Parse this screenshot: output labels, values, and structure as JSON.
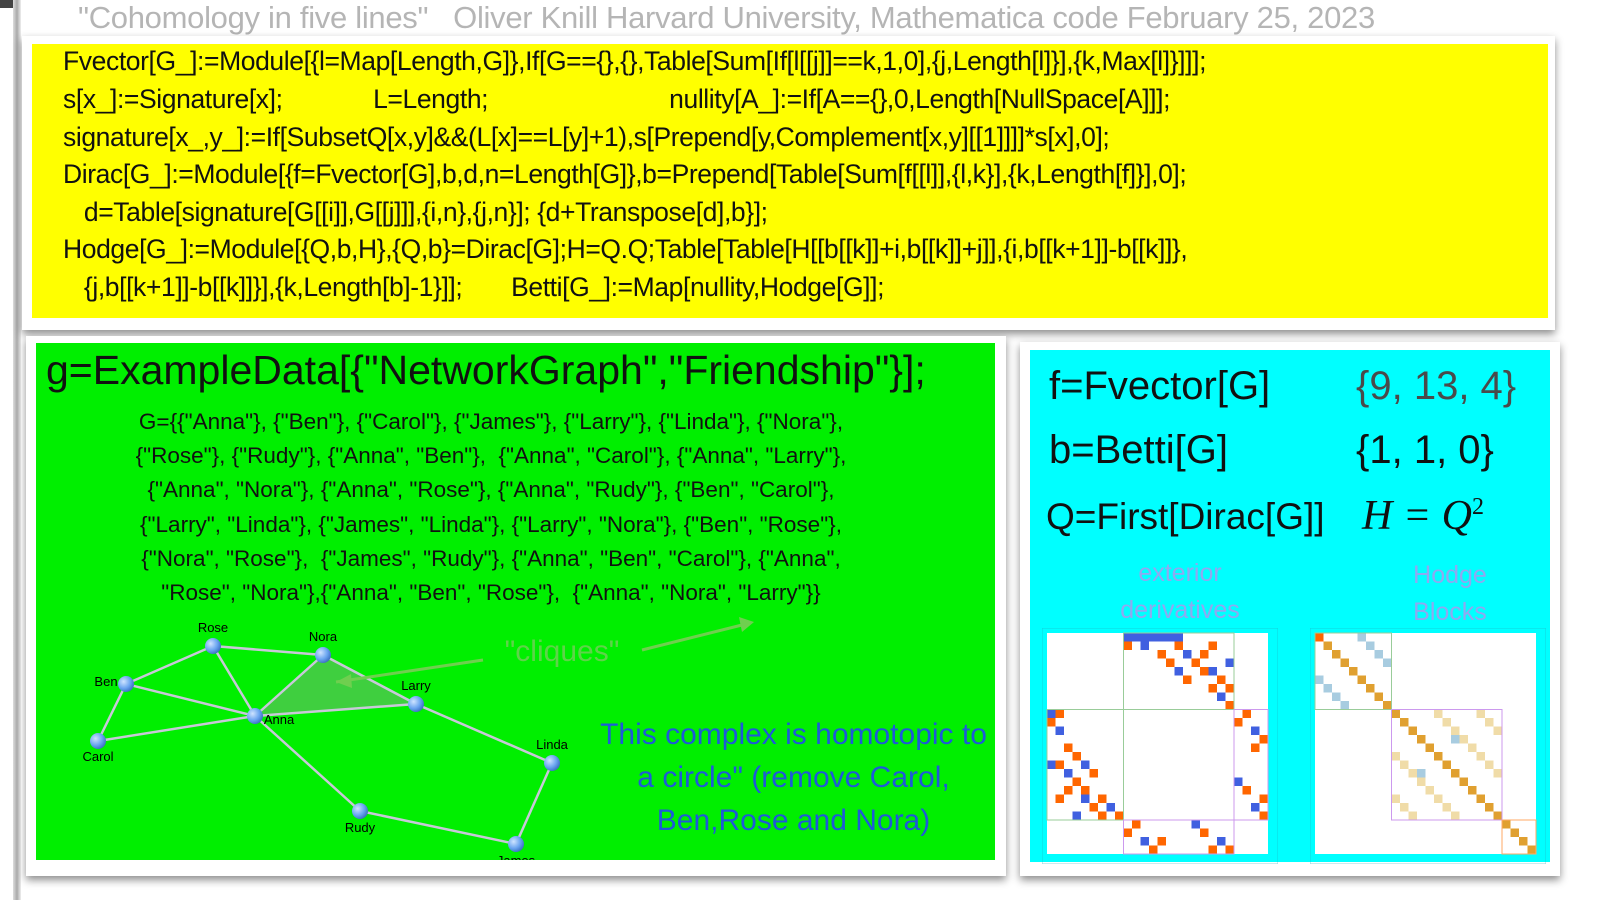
{
  "title": "\"Cohomology in five lines\"   Oliver Knill Harvard University, Mathematica code February 25, 2023",
  "code_lines": [
    "Fvector[G_]:=Module[{l=Map[Length,G]},If[G=={},{},Table[Sum[If[l[[j]]==k,1,0],{j,Length[l]}],{k,Max[l]}]]];",
    "s[x_]:=Signature[x];             L=Length;                          nullity[A_]:=If[A=={},0,Length[NullSpace[A]]];",
    "signature[x_,y_]:=If[SubsetQ[x,y]&&(L[x]==L[y]+1),s[Prepend[y,Complement[x,y][[1]]]]*s[x],0];",
    "Dirac[G_]:=Module[{f=Fvector[G],b,d,n=Length[G]},b=Prepend[Table[Sum[f[[l]],{l,k}],{k,Length[f]}],0];",
    "   d=Table[signature[G[[i]],G[[j]]],{i,n},{j,n}]; {d+Transpose[d],b}];",
    "Hodge[G_]:=Module[{Q,b,H},{Q,b}=Dirac[G];H=Q.Q;Table[Table[H[[b[[k]]+i,b[[k]]+j]],{i,b[[k+1]]-b[[k]]},",
    "   {j,b[[k+1]]-b[[k]]}],{k,Length[b]-1}]];       Betti[G_]:=Map[nullity,Hodge[G]];"
  ],
  "example": {
    "title": "g=ExampleData[{\"NetworkGraph\",\"Friendship\"}];",
    "lines": [
      "G={{\"Anna\"}, {\"Ben\"}, {\"Carol\"}, {\"James\"}, {\"Larry\"}, {\"Linda\"}, {\"Nora\"},",
      "{\"Rose\"}, {\"Rudy\"}, {\"Anna\", \"Ben\"},  {\"Anna\", \"Carol\"}, {\"Anna\", \"Larry\"},",
      "{\"Anna\", \"Nora\"}, {\"Anna\", \"Rose\"}, {\"Anna\", \"Rudy\"}, {\"Ben\", \"Carol\"},",
      "{\"Larry\", \"Linda\"}, {\"James\", \"Linda\"}, {\"Larry\", \"Nora\"}, {\"Ben\", \"Rose\"},",
      "{\"Nora\", \"Rose\"},  {\"James\", \"Rudy\"}, {\"Anna\", \"Ben\", \"Carol\"}, {\"Anna\",",
      "\"Rose\", \"Nora\"},{\"Anna\", \"Ben\", \"Rose\"},  {\"Anna\", \"Nora\", \"Larry\"}}"
    ],
    "graph": {
      "nodes": [
        "Rose",
        "Nora",
        "Ben",
        "Larry",
        "Anna",
        "Carol",
        "Linda",
        "Rudy",
        "James"
      ],
      "edges": [
        [
          "Rose",
          "Nora"
        ],
        [
          "Rose",
          "Ben"
        ],
        [
          "Rose",
          "Anna"
        ],
        [
          "Ben",
          "Anna"
        ],
        [
          "Ben",
          "Carol"
        ],
        [
          "Carol",
          "Anna"
        ],
        [
          "Anna",
          "Nora"
        ],
        [
          "Anna",
          "Larry"
        ],
        [
          "Nora",
          "Larry"
        ],
        [
          "Larry",
          "Linda"
        ],
        [
          "Linda",
          "James"
        ],
        [
          "James",
          "Rudy"
        ],
        [
          "Rudy",
          "Anna"
        ]
      ],
      "highlighted_triangle": [
        "Anna",
        "Nora",
        "Larry"
      ],
      "annotation": "\"cliques\""
    },
    "note": "This complex is homotopic to a circle\" (remove Carol, Ben,Rose and Nora)"
  },
  "results": {
    "f_label": "f=Fvector[G]",
    "f_value": "{9, 13, 4}",
    "b_label": "b=Betti[G]",
    "b_value": "{1, 1, 0}",
    "q_label": "Q=First[Dirac[G]]",
    "h_formula": "H = Q",
    "h_exp": "2",
    "ext_label": "exterior derivatives",
    "hodge_label": "Hodge Blocks"
  },
  "colors": {
    "code_bg": "#ffff00",
    "example_bg": "#00ef00",
    "results_bg": "#00ffff",
    "note": "#1e5ad8",
    "matrix_pos": "#ff6600",
    "matrix_neg": "#4060e0"
  }
}
